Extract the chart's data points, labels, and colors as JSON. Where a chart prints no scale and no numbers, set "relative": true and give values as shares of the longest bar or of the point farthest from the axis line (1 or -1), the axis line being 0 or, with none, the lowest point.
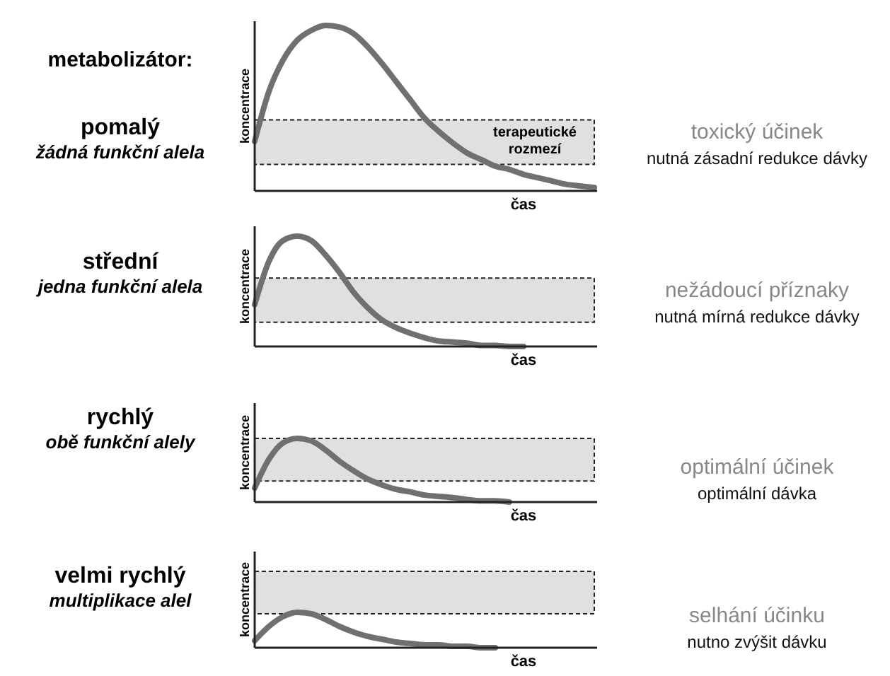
{
  "chart_data": [
    {
      "type": "line",
      "relative": true,
      "title": "pomalý",
      "subtitle": "žádná funkční alela",
      "xlabel": "čas",
      "ylabel": "koncentrace",
      "annotations": [
        "metabolizátor:",
        "toxický účinek",
        "nutná zásadní redukce dávky"
      ],
      "categories": [
        null,
        null,
        null,
        null,
        null,
        null,
        null,
        null,
        null,
        null,
        null,
        null,
        null,
        null,
        null,
        null,
        null,
        null,
        null,
        null,
        null,
        null,
        null,
        null,
        null
      ],
      "series": [
        {
          "color": "#707070",
          "values": [
            0.3,
            0.6,
            0.79,
            0.91,
            0.97,
            1,
            0.99,
            0.95,
            0.87,
            0.77,
            0.66,
            0.55,
            0.44,
            0.36,
            0.29,
            0.23,
            0.19,
            0.15,
            0.13,
            0.1,
            0.08,
            0.06,
            0.04,
            0.03,
            0.02
          ]
        }
      ],
      "bands": [
        {
          "axis": "y",
          "from": 0.16,
          "to": 0.43,
          "label": "terapeutické rozmezí",
          "color": "#e0e0e0"
        }
      ]
    },
    {
      "type": "line",
      "relative": true,
      "title": "střední",
      "subtitle": "jedna funkční alela",
      "xlabel": "čas",
      "ylabel": "koncentrace",
      "annotations": [
        "nežádoucí příznaky",
        "nutná mírná redukce dávky"
      ],
      "categories": [
        null,
        null,
        null,
        null,
        null,
        null,
        null,
        null,
        null,
        null,
        null,
        null,
        null,
        null,
        null,
        null,
        null,
        null,
        null,
        null,
        null,
        null,
        null,
        null,
        null
      ],
      "series": [
        {
          "color": "#707070",
          "values": [
            0.38,
            0.77,
            0.96,
            1,
            0.96,
            0.83,
            0.67,
            0.49,
            0.35,
            0.24,
            0.17,
            0.12,
            0.08,
            0.05,
            0.04,
            0.03,
            0.01,
            0.01,
            0,
            0,
            null,
            null,
            null,
            null,
            null
          ]
        }
      ],
      "bands": [
        {
          "axis": "y",
          "from": 0.22,
          "to": 0.62,
          "color": "#e0e0e0"
        }
      ]
    },
    {
      "type": "line",
      "relative": true,
      "title": "rychlý",
      "subtitle": "obě funkční alely",
      "xlabel": "čas",
      "ylabel": "koncentrace",
      "annotations": [
        "optimální účinek",
        "optimální dávka"
      ],
      "categories": [
        null,
        null,
        null,
        null,
        null,
        null,
        null,
        null,
        null,
        null,
        null,
        null,
        null,
        null,
        null,
        null,
        null,
        null,
        null,
        null,
        null,
        null,
        null,
        null,
        null
      ],
      "series": [
        {
          "color": "#707070",
          "values": [
            0.22,
            0.67,
            0.93,
            1,
            0.96,
            0.82,
            0.64,
            0.49,
            0.36,
            0.27,
            0.2,
            0.16,
            0.11,
            0.09,
            0.07,
            0.04,
            0.02,
            0.02,
            0,
            null,
            null,
            null,
            null,
            null,
            null
          ]
        }
      ],
      "bands": [
        {
          "axis": "y",
          "from": 0.33,
          "to": 1.0,
          "color": "#e0e0e0"
        }
      ]
    },
    {
      "type": "line",
      "relative": true,
      "title": "velmi rychlý",
      "subtitle": "multiplikace alel",
      "xlabel": "čas",
      "ylabel": "koncentrace",
      "annotations": [
        "selhání účinku",
        "nutno zvýšit dávku"
      ],
      "categories": [
        null,
        null,
        null,
        null,
        null,
        null,
        null,
        null,
        null,
        null,
        null,
        null,
        null,
        null,
        null,
        null,
        null,
        null,
        null,
        null,
        null,
        null,
        null,
        null,
        null
      ],
      "series": [
        {
          "color": "#707070",
          "values": [
            0.2,
            0.6,
            0.88,
            1,
            0.96,
            0.8,
            0.6,
            0.44,
            0.32,
            0.24,
            0.16,
            0.12,
            0.08,
            0.08,
            0.04,
            0.04,
            0,
            0,
            null,
            null,
            null,
            null,
            null,
            null,
            null
          ]
        }
      ],
      "bands": [
        {
          "axis": "y",
          "from": 0.96,
          "to": 2.16,
          "color": "#e0e0e0"
        }
      ]
    }
  ]
}
